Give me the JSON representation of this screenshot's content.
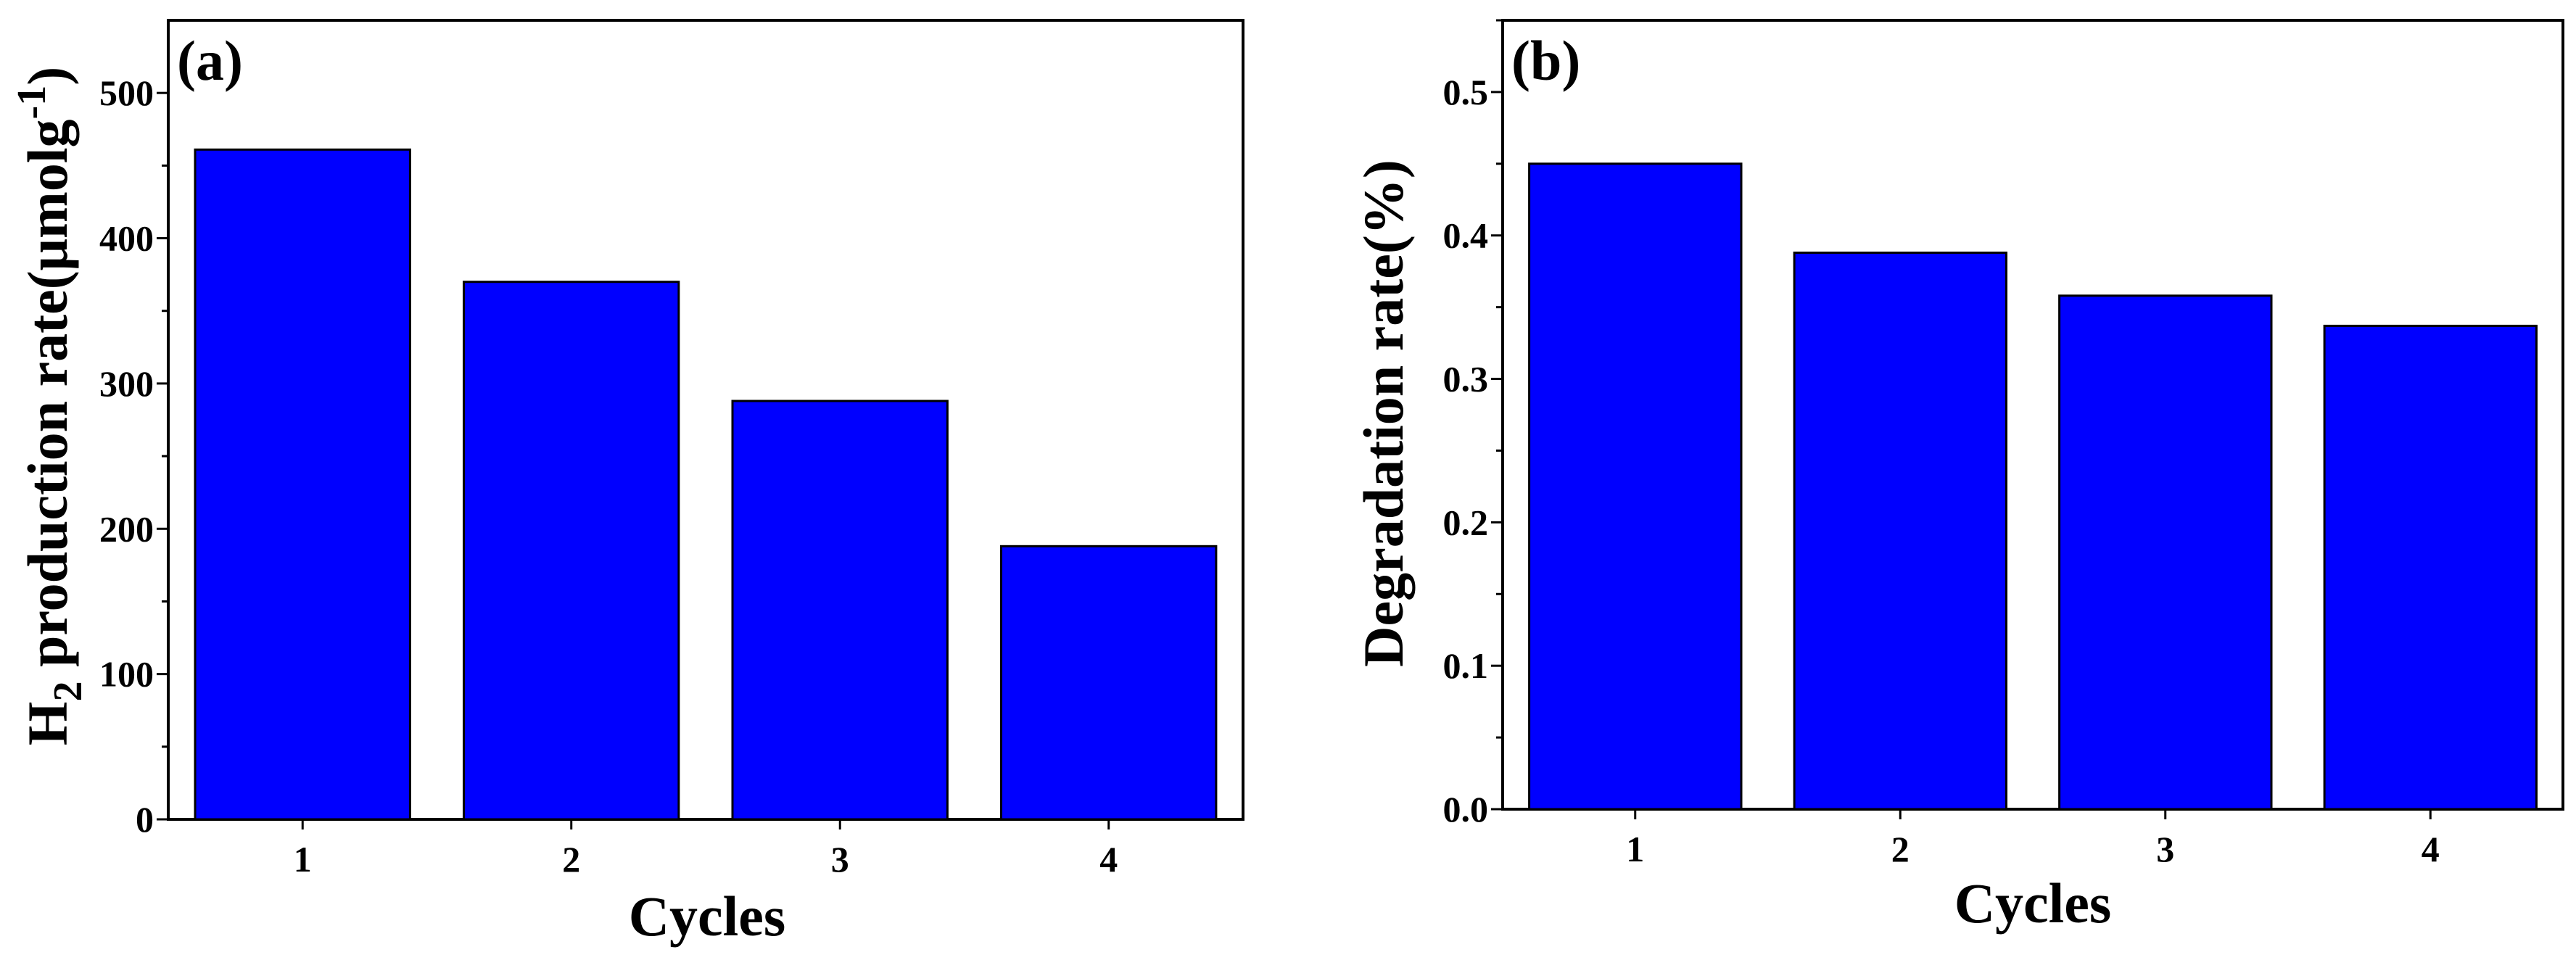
{
  "chart_data": [
    {
      "type": "bar",
      "panel_label": "(a)",
      "categories": [
        "1",
        "2",
        "3",
        "4"
      ],
      "values": [
        461,
        370,
        288,
        188
      ],
      "xlabel": "Cycles",
      "ylabel": "H2 production rate(μmolg-1)",
      "ylabel_parts": {
        "h": "H",
        "sub": "2",
        "main": " production rate(μmolg",
        "sup": "-1",
        "close": ")"
      },
      "ylim": [
        0,
        550
      ],
      "yticks": [
        0,
        100,
        200,
        300,
        400,
        500
      ],
      "ytick_labels": [
        "0",
        "100",
        "200",
        "300",
        "400",
        "500"
      ],
      "bar_color": "#0000FF",
      "grid": false
    },
    {
      "type": "bar",
      "panel_label": "(b)",
      "categories": [
        "1",
        "2",
        "3",
        "4"
      ],
      "values": [
        0.45,
        0.388,
        0.358,
        0.337
      ],
      "xlabel": "Cycles",
      "ylabel": "Degradation rate(%)",
      "ylim": [
        0,
        0.55
      ],
      "yticks": [
        0.0,
        0.1,
        0.2,
        0.3,
        0.4,
        0.5
      ],
      "ytick_labels": [
        "0.0",
        "0.1",
        "0.2",
        "0.3",
        "0.4",
        "0.5"
      ],
      "bar_color": "#0000FF",
      "grid": false
    }
  ]
}
